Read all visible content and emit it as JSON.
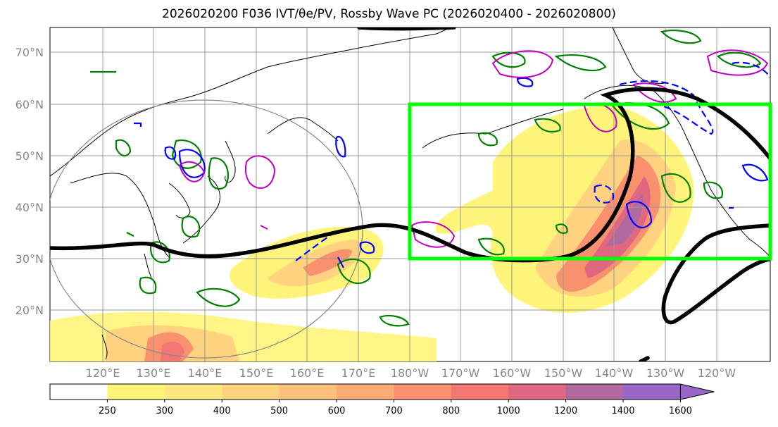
{
  "title": "2026020200 F036 IVT/θe/PV, Rossby Wave PC (2026020400 - 2026020800)",
  "map": {
    "lat_labels": [
      "70°N",
      "60°N",
      "50°N",
      "40°N",
      "30°N",
      "20°N"
    ],
    "lon_labels": [
      "120°E",
      "130°E",
      "140°E",
      "150°E",
      "160°E",
      "170°E",
      "180°W",
      "170°W",
      "160°W",
      "150°W",
      "140°W",
      "130°W",
      "120°W"
    ],
    "box_color": "#00ff00",
    "contour_colors": {
      "pv_positive": "#008000",
      "pv_negative": "#0000ff",
      "theta_e": "#c000c0",
      "rossby_pc": "#000000"
    }
  },
  "colorbar": {
    "ticks": [
      "250",
      "300",
      "400",
      "500",
      "600",
      "700",
      "800",
      "1000",
      "1200",
      "1400",
      "1600"
    ],
    "colors": [
      "#ffffff",
      "#fff47a",
      "#fee680",
      "#fed27f",
      "#fdc07a",
      "#fcab73",
      "#f9906e",
      "#f27672",
      "#df6880",
      "#b06aa0",
      "#9866c6"
    ]
  }
}
